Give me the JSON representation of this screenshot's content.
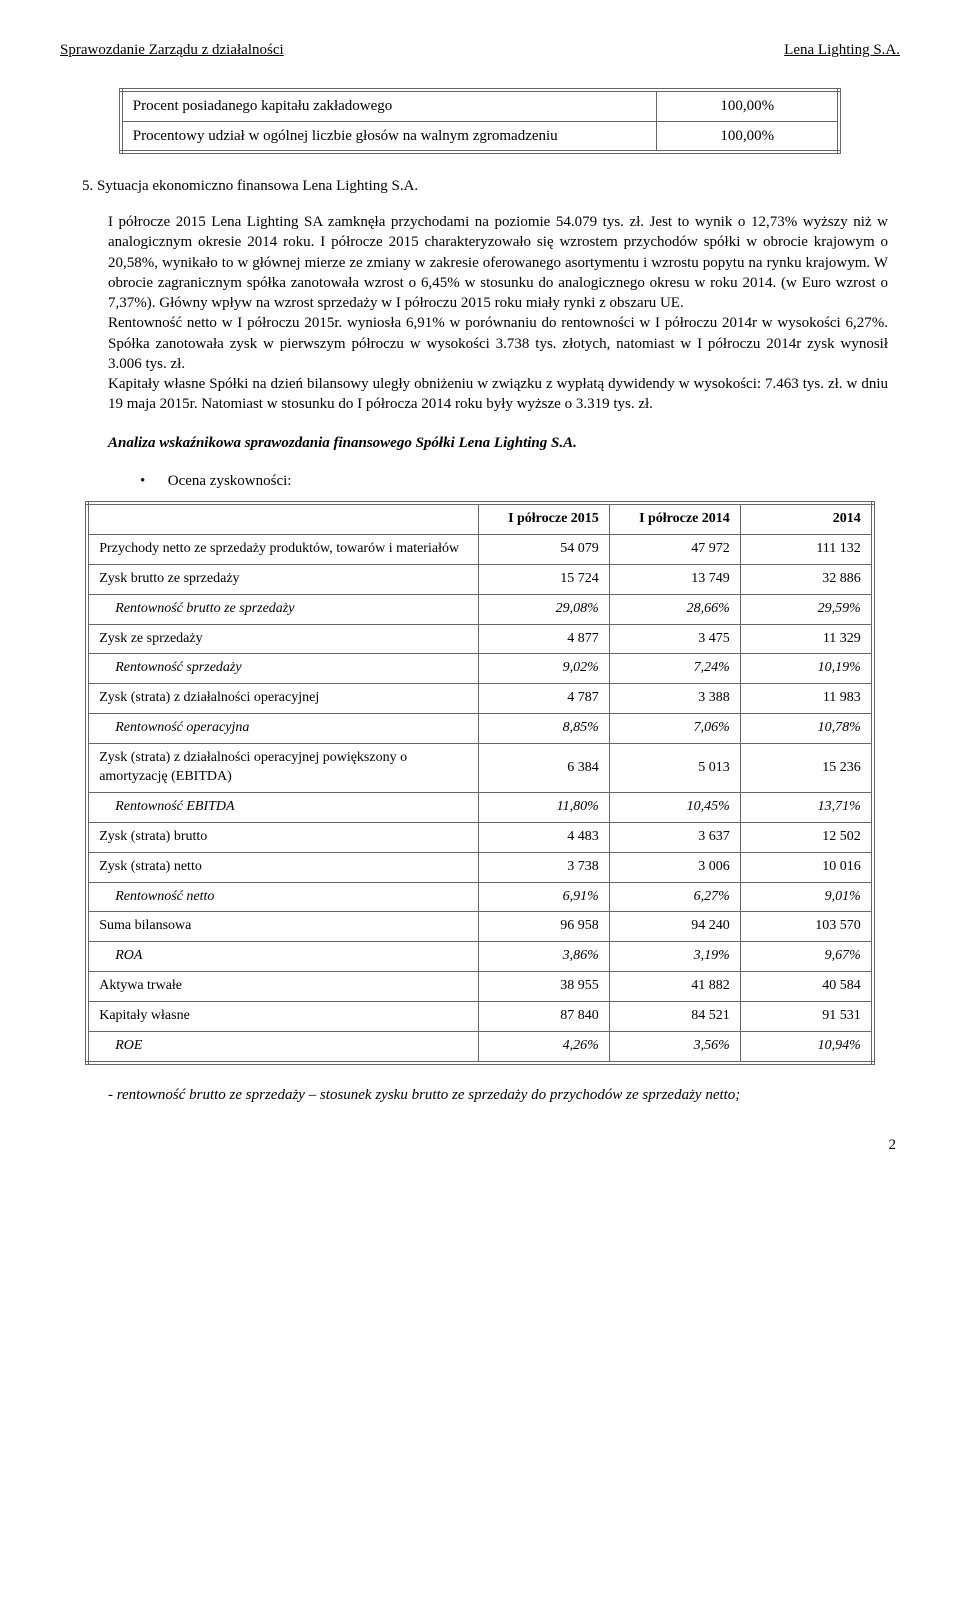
{
  "header": {
    "left": "Sprawozdanie Zarządu z działalności",
    "right": "Lena Lighting S.A."
  },
  "small_table": {
    "rows": [
      {
        "label": "Procent posiadanego kapitału zakładowego",
        "value": "100,00%"
      },
      {
        "label": "Procentowy udział w ogólnej liczbie głosów na walnym zgromadzeniu",
        "value": "100,00%"
      }
    ]
  },
  "section5": {
    "title": "5.   Sytuacja ekonomiczno finansowa Lena Lighting S.A.",
    "body": "I półrocze 2015 Lena Lighting SA zamknęła przychodami na poziomie 54.079 tys. zł. Jest to wynik o 12,73% wyższy niż w analogicznym okresie 2014 roku. I półrocze 2015 charakteryzowało się wzrostem przychodów spółki w obrocie krajowym o 20,58%, wynikało to w głównej mierze ze zmiany w zakresie oferowanego asortymentu i wzrostu popytu na rynku krajowym. W obrocie zagranicznym spółka zanotowała wzrost o 6,45% w stosunku do analogicznego okresu w roku 2014. (w Euro wzrost o 7,37%). Główny wpływ na wzrost sprzedaży w I półroczu 2015 roku miały rynki z obszaru UE.\nRentowność netto w I półroczu 2015r. wyniosła 6,91% w porównaniu do rentowności w I półroczu 2014r w wysokości 6,27%. Spółka zanotowała zysk w pierwszym półroczu w wysokości 3.738 tys. złotych, natomiast w I półroczu 2014r zysk wynosił 3.006 tys. zł.\nKapitały własne Spółki na dzień bilansowy uległy obniżeniu w związku z wypłatą dywidendy w wysokości: 7.463 tys. zł. w dniu 19 maja 2015r. Natomiast w stosunku do I półrocza 2014 roku były wyższe o  3.319 tys. zł."
  },
  "analysis_heading": "Analiza wskaźnikowa sprawozdania finansowego Spółki Lena Lighting S.A.",
  "bullet1": "Ocena zyskowności:",
  "fin_table": {
    "columns": [
      "",
      "I półrocze 2015",
      "I półrocze 2014",
      "2014"
    ],
    "rows": [
      {
        "label": "Przychody netto ze sprzedaży produktów, towarów i materiałów",
        "v": [
          "54 079",
          "47 972",
          "111 132"
        ],
        "italic": false
      },
      {
        "label": "Zysk brutto ze sprzedaży",
        "v": [
          "15 724",
          "13 749",
          "32 886"
        ],
        "italic": false
      },
      {
        "label": "Rentowność brutto ze sprzedaży",
        "v": [
          "29,08%",
          "28,66%",
          "29,59%"
        ],
        "italic": true
      },
      {
        "label": "Zysk ze sprzedaży",
        "v": [
          "4 877",
          "3 475",
          "11 329"
        ],
        "italic": false
      },
      {
        "label": "Rentowność sprzedaży",
        "v": [
          "9,02%",
          "7,24%",
          "10,19%"
        ],
        "italic": true
      },
      {
        "label": "Zysk (strata) z działalności operacyjnej",
        "v": [
          "4 787",
          "3 388",
          "11 983"
        ],
        "italic": false
      },
      {
        "label": "Rentowność operacyjna",
        "v": [
          "8,85%",
          "7,06%",
          "10,78%"
        ],
        "italic": true
      },
      {
        "label": "Zysk (strata) z działalności operacyjnej powiększony o amortyzację (EBITDA)",
        "v": [
          "6 384",
          "5 013",
          "15 236"
        ],
        "italic": false
      },
      {
        "label": "Rentowność EBITDA",
        "v": [
          "11,80%",
          "10,45%",
          "13,71%"
        ],
        "italic": true
      },
      {
        "label": "Zysk (strata) brutto",
        "v": [
          "4 483",
          "3 637",
          "12 502"
        ],
        "italic": false
      },
      {
        "label": "Zysk (strata) netto",
        "v": [
          "3 738",
          "3 006",
          "10 016"
        ],
        "italic": false
      },
      {
        "label": "Rentowność netto",
        "v": [
          "6,91%",
          "6,27%",
          "9,01%"
        ],
        "italic": true
      },
      {
        "label": "Suma bilansowa",
        "v": [
          "96 958",
          "94 240",
          "103 570"
        ],
        "italic": false
      },
      {
        "label": "ROA",
        "v": [
          "3,86%",
          "3,19%",
          "9,67%"
        ],
        "italic": true
      },
      {
        "label": "Aktywa trwałe",
        "v": [
          "38 955",
          "41 882",
          "40 584"
        ],
        "italic": false
      },
      {
        "label": "Kapitały własne",
        "v": [
          "87 840",
          "84 521",
          "91 531"
        ],
        "italic": false
      },
      {
        "label": "ROE",
        "v": [
          "4,26%",
          "3,56%",
          "10,94%"
        ],
        "italic": true
      }
    ]
  },
  "footer_note": "- rentowność brutto ze sprzedaży – stosunek zysku brutto ze sprzedaży do przychodów ze sprzedaży netto;",
  "page_number": "2"
}
